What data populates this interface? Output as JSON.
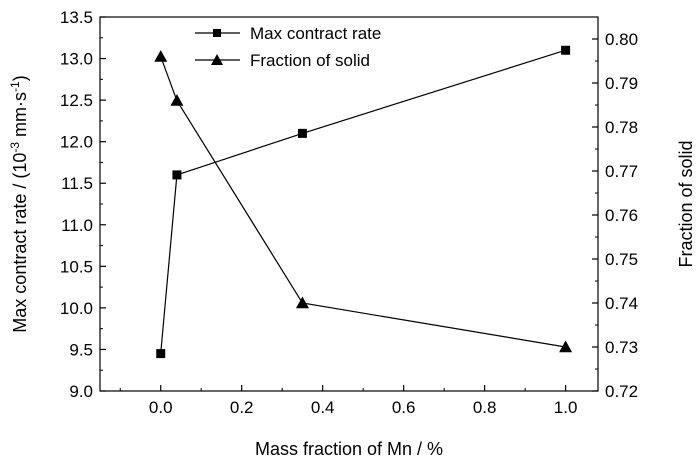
{
  "chart_data": {
    "type": "line",
    "x": [
      0,
      0.04,
      0.35,
      1.0
    ],
    "x_ticks": [
      "0.0",
      "0.2",
      "0.4",
      "0.6",
      "0.8",
      "1.0"
    ],
    "xlim": [
      -0.15,
      1.08
    ],
    "xlabel": "Mass fraction of Mn / %",
    "ylabel_left_prefix": "Max contract rate / (10",
    "ylabel_left_exp1": "-3",
    "ylabel_left_mid": " mm·s",
    "ylabel_left_exp2": "-1",
    "ylabel_left_suffix": ")",
    "ylabel_right": "Fraction of solid",
    "ylim_left": [
      9.0,
      13.5
    ],
    "ylim_right": [
      0.72,
      0.805
    ],
    "y_ticks_left": [
      "9.0",
      "9.5",
      "10.0",
      "10.5",
      "11.0",
      "11.5",
      "12.0",
      "12.5",
      "13.0",
      "13.5"
    ],
    "y_ticks_right": [
      "0.72",
      "0.73",
      "0.74",
      "0.75",
      "0.76",
      "0.77",
      "0.78",
      "0.79",
      "0.80"
    ],
    "legend_position": "top-center",
    "grid": false,
    "series": [
      {
        "name": "Max contract rate",
        "axis": "left",
        "marker": "square",
        "values": [
          9.45,
          11.6,
          12.1,
          13.1
        ]
      },
      {
        "name": "Fraction of solid",
        "axis": "right",
        "marker": "triangle",
        "values": [
          0.796,
          0.786,
          0.74,
          0.73
        ]
      }
    ]
  }
}
